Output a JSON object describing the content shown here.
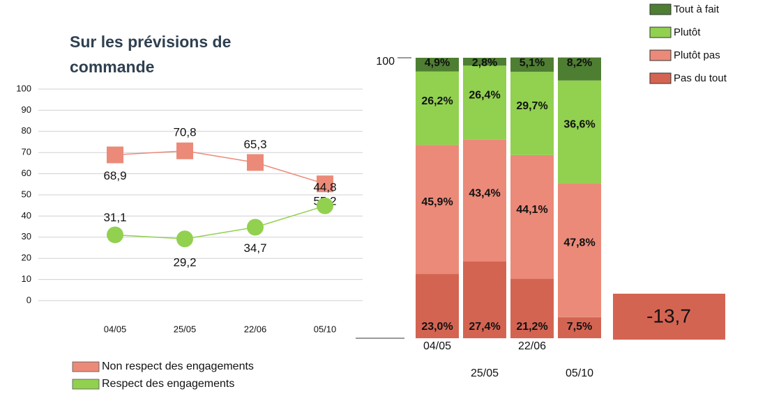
{
  "chart_data": [
    {
      "type": "line",
      "title": "Sur les prévisions de commande",
      "categories": [
        "04/05",
        "25/05",
        "22/06",
        "05/10"
      ],
      "series": [
        {
          "name": "Non respect des engagements",
          "color": "#eb8a79",
          "values": [
            68.9,
            70.8,
            65.3,
            55.2
          ],
          "value_labels": [
            "68,9",
            "70,8",
            "65,3",
            "55,2"
          ]
        },
        {
          "name": "Respect des engagements",
          "color": "#92d050",
          "values": [
            31.1,
            29.2,
            34.7,
            44.8
          ],
          "value_labels": [
            "31,1",
            "29,2",
            "34,7",
            "44,8"
          ]
        }
      ],
      "ylim": [
        0,
        100
      ],
      "yticks": [
        0,
        10,
        20,
        30,
        40,
        50,
        60,
        70,
        80,
        90,
        100
      ],
      "grid": true,
      "legend": "bottom"
    },
    {
      "type": "stacked_bar",
      "categories": [
        "04/05",
        "25/05",
        "22/06",
        "05/10"
      ],
      "series": [
        {
          "name": "Pas du tout",
          "color": "#d46452",
          "values": [
            23.0,
            27.4,
            21.2,
            7.5
          ],
          "value_labels": [
            "23,0%",
            "27,4%",
            "21,2%",
            "7,5%"
          ]
        },
        {
          "name": "Plutôt pas",
          "color": "#eb8a79",
          "values": [
            45.9,
            43.4,
            44.1,
            47.8
          ],
          "value_labels": [
            "45,9%",
            "43,4%",
            "44,1%",
            "47,8%"
          ]
        },
        {
          "name": "Plutôt",
          "color": "#92d050",
          "values": [
            26.2,
            26.4,
            29.7,
            36.6
          ],
          "value_labels": [
            "26,2%",
            "26,4%",
            "29,7%",
            "36,6%"
          ]
        },
        {
          "name": "Tout à fait",
          "color": "#4e7e32",
          "values": [
            4.9,
            2.8,
            5.1,
            8.2
          ],
          "value_labels": [
            "4,9%",
            "2,8%",
            "5,1%",
            "8,2%"
          ]
        }
      ],
      "ylim": [
        0,
        100
      ],
      "yticks": [
        100
      ],
      "legend": "top-right",
      "annotations": [
        "-13,7"
      ]
    }
  ]
}
